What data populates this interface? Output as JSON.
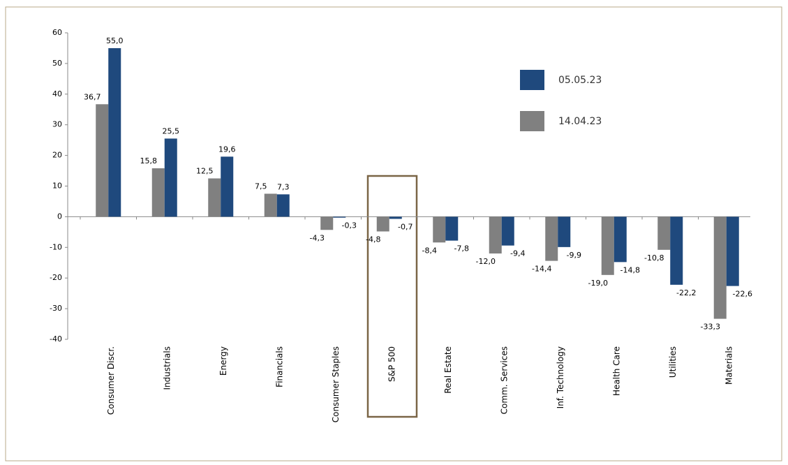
{
  "chart_data": {
    "type": "bar",
    "categories": [
      "Consumer Discr.",
      "Industrials",
      "Energy",
      "Financials",
      "Consumer Staples",
      "S&P 500",
      "Real Estate",
      "Comm. Services",
      "Inf. Technology",
      "Health Care",
      "Utilities",
      "Materials"
    ],
    "series": [
      {
        "name": "14.04.23",
        "color": "#808080",
        "values": [
          36.7,
          15.8,
          12.5,
          7.5,
          -4.3,
          -4.8,
          -8.4,
          -12.0,
          -14.4,
          -19.0,
          -10.8,
          -33.3
        ],
        "value_labels": [
          "36,7",
          "15,8",
          "12,5",
          "7,5",
          "-4,3",
          "-4,8",
          "-8,4",
          "-12,0",
          "-14,4",
          "-19,0",
          "-10,8",
          "-33,3"
        ]
      },
      {
        "name": "05.05.23",
        "color": "#1f497d",
        "values": [
          55.0,
          25.5,
          19.6,
          7.3,
          -0.3,
          -0.7,
          -7.8,
          -9.4,
          -9.9,
          -14.8,
          -22.2,
          -22.6
        ],
        "value_labels": [
          "55,0",
          "25,5",
          "19,6",
          "7,3",
          "-0,3",
          "-0,7",
          "-7,8",
          "-9,4",
          "-9,9",
          "-14,8",
          "-22,2",
          "-22,6"
        ]
      }
    ],
    "ylim": [
      -40,
      60
    ],
    "yticks": [
      -40,
      -30,
      -20,
      -10,
      0,
      10,
      20,
      30,
      40,
      50,
      60
    ]
  }
}
